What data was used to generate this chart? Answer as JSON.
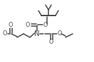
{
  "bg_color": "#ffffff",
  "line_color": "#4a4a4a",
  "lw": 1.1,
  "fs": 5.8,
  "figsize": [
    1.32,
    0.88
  ],
  "dpi": 100,
  "xlim": [
    0,
    132
  ],
  "ylim": [
    0,
    88
  ]
}
